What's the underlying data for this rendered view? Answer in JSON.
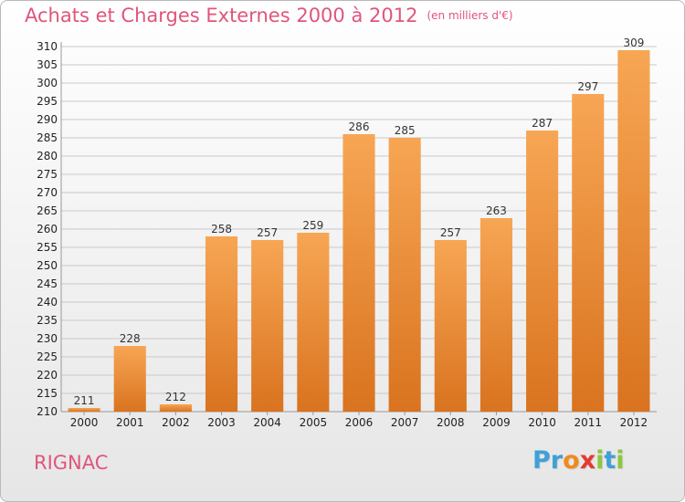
{
  "header": {
    "title": "Achats et Charges Externes 2000 à 2012",
    "subtitle": "(en milliers d'€)"
  },
  "footer": {
    "place": "RIGNAC",
    "logo_letters": [
      "P",
      "r",
      "o",
      "x",
      "i",
      "t",
      "i"
    ],
    "logo_colors": [
      "#3fa0d8",
      "#3fa0d8",
      "#f08a1d",
      "#e23c2e",
      "#8cc63f",
      "#3fa0d8",
      "#8cc63f"
    ]
  },
  "colors": {
    "title": "#e0557c",
    "bar_light": "#f7a654",
    "bar_dark": "#d9731f",
    "grid": "#c9c9c9"
  },
  "chart_data": {
    "type": "bar",
    "title": "Achats et Charges Externes 2000 à 2012",
    "subtitle": "(en milliers d'€)",
    "categories": [
      "2000",
      "2001",
      "2002",
      "2003",
      "2004",
      "2005",
      "2006",
      "2007",
      "2008",
      "2009",
      "2010",
      "2011",
      "2012"
    ],
    "values": [
      211,
      228,
      212,
      258,
      257,
      259,
      286,
      285,
      257,
      263,
      287,
      297,
      309
    ],
    "ylim": [
      210,
      310
    ],
    "ytick_step": 5,
    "grid": true,
    "data_labels": true
  }
}
